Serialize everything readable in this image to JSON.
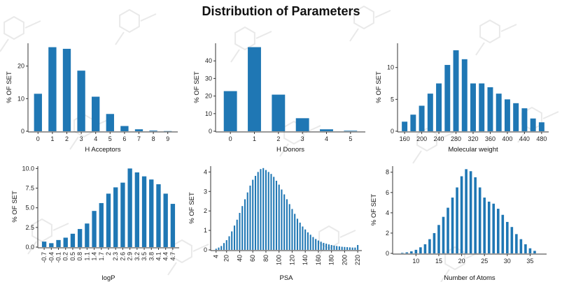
{
  "page": {
    "title": "Distribution of Parameters"
  },
  "colors": {
    "bar": "#1f77b4",
    "axis": "#333333",
    "background_pattern": "#e9e9e9"
  },
  "chart_data": [
    {
      "id": "h-acceptors",
      "type": "bar",
      "xlabel": "H Acceptors",
      "ylabel": "% OF SET",
      "x_scale": "category",
      "categories": [
        "0",
        "1",
        "2",
        "3",
        "4",
        "5",
        "6",
        "7",
        "8",
        "9"
      ],
      "values": [
        11.5,
        25.8,
        25.3,
        18.6,
        10.6,
        5.3,
        1.6,
        0.6,
        0.2,
        0.05
      ],
      "ylim": [
        0,
        27
      ],
      "yticks": [
        0,
        10,
        20
      ],
      "grid": false
    },
    {
      "id": "h-donors",
      "type": "bar",
      "xlabel": "H Donors",
      "ylabel": "% OF SET",
      "x_scale": "category",
      "categories": [
        "0",
        "1",
        "2",
        "3",
        "4",
        "5"
      ],
      "values": [
        22.8,
        47.8,
        20.8,
        7.4,
        1.1,
        0.3
      ],
      "ylim": [
        0,
        50
      ],
      "yticks": [
        0,
        10,
        20,
        30,
        40
      ],
      "grid": false
    },
    {
      "id": "molecular-weight",
      "type": "bar",
      "xlabel": "Molecular weight",
      "ylabel": "% OF SET",
      "x_scale": "linear",
      "x": [
        160,
        180,
        200,
        220,
        240,
        260,
        280,
        300,
        320,
        340,
        360,
        380,
        400,
        420,
        440,
        460,
        480
      ],
      "values": [
        1.5,
        2.6,
        4.0,
        5.9,
        7.5,
        10.4,
        12.7,
        11.3,
        7.5,
        7.5,
        6.9,
        5.9,
        5.0,
        4.4,
        3.6,
        2.0,
        1.4
      ],
      "xlim": [
        150,
        490
      ],
      "xticks": [
        160,
        200,
        240,
        280,
        320,
        360,
        400,
        440,
        480
      ],
      "ylim": [
        0,
        13.8
      ],
      "yticks": [
        0,
        5,
        10
      ],
      "grid": false
    },
    {
      "id": "logp",
      "type": "bar",
      "xlabel": "logP",
      "ylabel": "% OF SET",
      "x_scale": "category",
      "categories": [
        "-0.7",
        "-0.4",
        "-0.1",
        "0.2",
        "0.5",
        "0.8",
        "1.1",
        "1.4",
        "1.7",
        "2",
        "2.3",
        "2.6",
        "2.9",
        "3.2",
        "3.5",
        "3.8",
        "4.1",
        "4.4",
        "4.7"
      ],
      "values": [
        0.7,
        0.5,
        0.9,
        1.2,
        1.7,
        2.3,
        3.0,
        4.6,
        5.6,
        6.8,
        7.6,
        8.2,
        10.0,
        9.5,
        9.0,
        8.6,
        8.0,
        6.8,
        5.5
      ],
      "tick_labels": [
        "-0.7",
        "-0.4",
        "-0.1",
        "0.2",
        "0.5",
        "0.8",
        "1.1",
        "1.4",
        "1.7",
        "2",
        "2.3",
        "2.6",
        "2.9",
        "3.2",
        "3.5",
        "3.8",
        "4.1",
        "4.4",
        "4.7"
      ],
      "rotate_tick_labels": true,
      "ylim": [
        0,
        10.3
      ],
      "yticks": [
        0,
        2.5,
        5,
        7.5,
        10
      ],
      "ytick_labels": [
        "0.0",
        "2.5",
        "5.0",
        "7.5",
        "10.0"
      ],
      "grid": false
    },
    {
      "id": "psa",
      "type": "bar",
      "xlabel": "PSA",
      "ylabel": "% OF SET",
      "x_scale": "linear",
      "x": [
        4,
        8,
        12,
        16,
        20,
        24,
        28,
        32,
        36,
        40,
        44,
        48,
        52,
        56,
        60,
        64,
        68,
        72,
        76,
        80,
        84,
        88,
        92,
        96,
        100,
        104,
        108,
        112,
        116,
        120,
        124,
        128,
        132,
        136,
        140,
        144,
        148,
        152,
        156,
        160,
        164,
        168,
        172,
        176,
        180,
        184,
        188,
        192,
        196,
        200,
        204,
        208,
        212,
        216,
        220
      ],
      "values": [
        0.06,
        0.12,
        0.2,
        0.35,
        0.5,
        0.7,
        0.95,
        1.25,
        1.55,
        1.9,
        2.25,
        2.6,
        2.95,
        3.3,
        3.6,
        3.8,
        4.0,
        4.15,
        4.2,
        4.1,
        4.0,
        3.9,
        3.75,
        3.55,
        3.35,
        3.1,
        2.85,
        2.6,
        2.35,
        2.1,
        1.85,
        1.6,
        1.4,
        1.2,
        1.05,
        0.9,
        0.78,
        0.66,
        0.56,
        0.48,
        0.42,
        0.36,
        0.32,
        0.28,
        0.25,
        0.22,
        0.2,
        0.18,
        0.16,
        0.15,
        0.14,
        0.13,
        0.12,
        0.12,
        0.25
      ],
      "xlim": [
        0,
        222
      ],
      "xticks": [
        4,
        20,
        40,
        60,
        80,
        100,
        120,
        140,
        160,
        180,
        200,
        220
      ],
      "rotate_tick_labels": true,
      "ylim": [
        0,
        4.3
      ],
      "yticks": [
        0,
        1,
        2,
        3,
        4
      ],
      "grid": false
    },
    {
      "id": "number-of-atoms",
      "type": "bar",
      "xlabel": "Number of Atoms",
      "ylabel": "% OF SET",
      "x_scale": "linear",
      "x": [
        7,
        8,
        9,
        10,
        11,
        12,
        13,
        14,
        15,
        16,
        17,
        18,
        19,
        20,
        21,
        22,
        23,
        24,
        25,
        26,
        27,
        28,
        29,
        30,
        31,
        32,
        33,
        34,
        35,
        36
      ],
      "values": [
        0.05,
        0.1,
        0.2,
        0.35,
        0.6,
        0.9,
        1.4,
        2.0,
        2.8,
        3.6,
        4.5,
        5.5,
        6.5,
        7.6,
        8.3,
        8.1,
        7.5,
        6.5,
        5.5,
        5.1,
        4.9,
        4.4,
        3.8,
        3.1,
        2.6,
        1.9,
        1.4,
        0.9,
        0.5,
        0.25
      ],
      "xlim": [
        5.5,
        38
      ],
      "xticks": [
        10,
        15,
        20,
        25,
        30,
        35
      ],
      "ylim": [
        0,
        8.6
      ],
      "yticks": [
        0,
        2,
        4,
        6,
        8
      ],
      "grid": false
    }
  ]
}
